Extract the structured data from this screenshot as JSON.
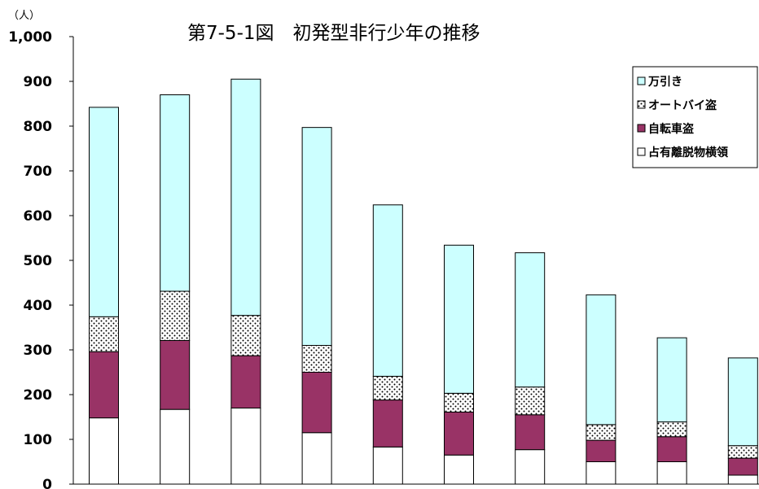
{
  "chart_data": {
    "type": "bar",
    "stacked": true,
    "title": "第7-5-1図　初発型非行少年の推移",
    "ylabel": "（人）",
    "xlabel": "",
    "ylim": [
      0,
      1000
    ],
    "yticks": [
      "0",
      "100",
      "200",
      "300",
      "400",
      "500",
      "600",
      "700",
      "800",
      "900",
      "1,000"
    ],
    "categories": [
      "",
      "",
      "",
      "",
      "",
      "",
      "",
      "",
      "",
      ""
    ],
    "series": [
      {
        "name": "占有離脱物横領",
        "color": "#ffffff",
        "pattern": "none",
        "values": [
          148,
          167,
          170,
          115,
          83,
          65,
          77,
          50,
          50,
          20
        ]
      },
      {
        "name": "自転車盗",
        "color": "#993366",
        "pattern": "none",
        "values": [
          148,
          154,
          117,
          135,
          105,
          96,
          78,
          48,
          56,
          38
        ]
      },
      {
        "name": "オートバイ盗",
        "color": "#ffffff",
        "pattern": "dots",
        "values": [
          78,
          110,
          90,
          60,
          53,
          42,
          62,
          35,
          33,
          28
        ]
      },
      {
        "name": "万引き",
        "color": "#ccffff",
        "pattern": "none",
        "values": [
          468,
          439,
          528,
          487,
          383,
          331,
          300,
          290,
          188,
          196
        ]
      }
    ],
    "legend_position": "top-right",
    "grid": false
  }
}
